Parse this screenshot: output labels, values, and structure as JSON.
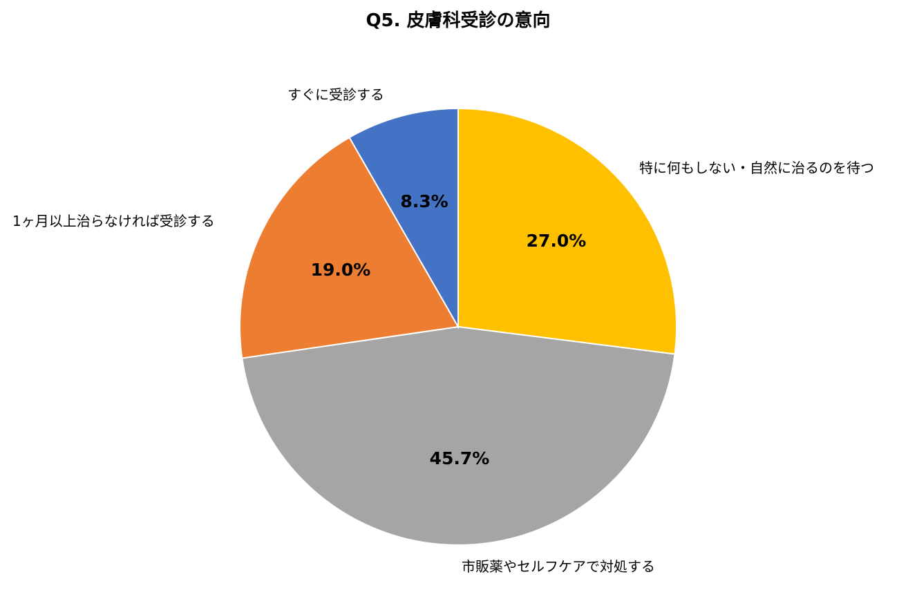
{
  "chart_data": {
    "type": "pie",
    "title": "Q5. 皮膚科受診の意向",
    "categories": [
      "特に何もしない・自然に治るのを待つ",
      "市販薬やセルフケアで対処する",
      "1ヶ月以上治らなければ受診する",
      "すぐに受診する"
    ],
    "values": [
      27.0,
      45.7,
      19.0,
      8.3
    ],
    "value_labels": [
      "27.0%",
      "45.7%",
      "19.0%",
      "8.3%"
    ],
    "colors": [
      "#FFC000",
      "#A5A5A5",
      "#ED7D31",
      "#4472C4"
    ],
    "start_angle": "12 o'clock",
    "direction": "clockwise",
    "legend": "none (category labels outside slices)"
  }
}
